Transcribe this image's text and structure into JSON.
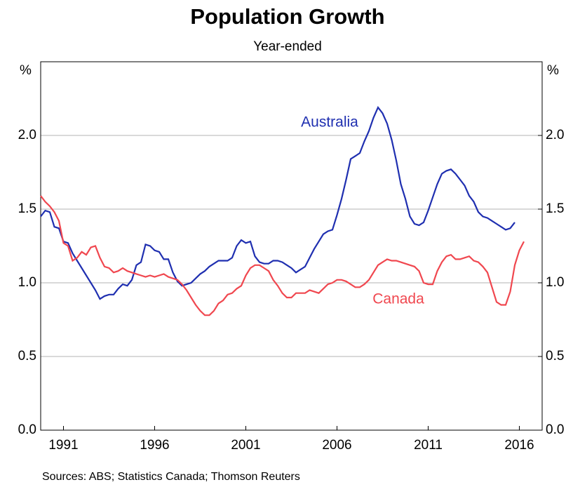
{
  "chart_data": {
    "type": "line",
    "title": "Population Growth",
    "subtitle": "Year-ended",
    "y_label": "%",
    "y2_label": "%",
    "source": "Sources:   ABS; Statistics Canada; Thomson Reuters",
    "xlim": [
      1990.25,
      2017.75
    ],
    "xticks": [
      {
        "value": 1991.5,
        "label": "1991"
      },
      {
        "value": 1996.5,
        "label": "1996"
      },
      {
        "value": 2001.5,
        "label": "2001"
      },
      {
        "value": 2006.5,
        "label": "2006"
      },
      {
        "value": 2011.5,
        "label": "2011"
      },
      {
        "value": 2016.5,
        "label": "2016"
      }
    ],
    "ylim": [
      0,
      2.5
    ],
    "yticks": [
      {
        "value": 0,
        "label": "0.0"
      },
      0.5,
      {
        "value": 1,
        "label": "1.0"
      },
      1.5,
      {
        "value": 2,
        "label": "2.0"
      }
    ],
    "y2lim": [
      0,
      2.5
    ],
    "y2ticks": [
      {
        "value": 0,
        "label": "0.0"
      },
      0.5,
      {
        "value": 1,
        "label": "1.0"
      },
      1.5,
      {
        "value": 2,
        "label": "2.0"
      }
    ],
    "grid": true,
    "x": [
      1990.25,
      1990.5,
      1990.75,
      1991,
      1991.25,
      1991.5,
      1991.75,
      1992,
      1992.25,
      1992.5,
      1992.75,
      1993,
      1993.25,
      1993.5,
      1993.75,
      1994,
      1994.25,
      1994.5,
      1994.75,
      1995,
      1995.25,
      1995.5,
      1995.75,
      1996,
      1996.25,
      1996.5,
      1996.75,
      1997,
      1997.25,
      1997.5,
      1997.75,
      1998,
      1998.25,
      1998.5,
      1998.75,
      1999,
      1999.25,
      1999.5,
      1999.75,
      2000,
      2000.25,
      2000.5,
      2000.75,
      2001,
      2001.25,
      2001.5,
      2001.75,
      2002,
      2002.25,
      2002.5,
      2002.75,
      2003,
      2003.25,
      2003.5,
      2003.75,
      2004,
      2004.25,
      2004.5,
      2004.75,
      2005,
      2005.25,
      2005.5,
      2005.75,
      2006,
      2006.25,
      2006.5,
      2006.75,
      2007,
      2007.25,
      2007.5,
      2007.75,
      2008,
      2008.25,
      2008.5,
      2008.75,
      2009,
      2009.25,
      2009.5,
      2009.75,
      2010,
      2010.25,
      2010.5,
      2010.75,
      2011,
      2011.25,
      2011.5,
      2011.75,
      2012,
      2012.25,
      2012.5,
      2012.75,
      2013,
      2013.25,
      2013.5,
      2013.75,
      2014,
      2014.25,
      2014.5,
      2014.75,
      2015,
      2015.25,
      2015.5,
      2015.75,
      2016,
      2016.25,
      2016.5,
      2016.75
    ],
    "series": [
      {
        "name": "Australia",
        "color": "#1f2fb0",
        "values": [
          1.45,
          1.49,
          1.48,
          1.38,
          1.37,
          1.28,
          1.27,
          1.2,
          1.15,
          1.1,
          1.05,
          1.0,
          0.95,
          0.89,
          0.91,
          0.92,
          0.92,
          0.96,
          0.99,
          0.98,
          1.02,
          1.12,
          1.14,
          1.26,
          1.25,
          1.22,
          1.21,
          1.16,
          1.16,
          1.07,
          1.01,
          0.98,
          0.99,
          1.0,
          1.03,
          1.06,
          1.08,
          1.11,
          1.13,
          1.15,
          1.15,
          1.15,
          1.17,
          1.25,
          1.29,
          1.27,
          1.28,
          1.18,
          1.14,
          1.13,
          1.13,
          1.15,
          1.15,
          1.14,
          1.12,
          1.1,
          1.07,
          1.09,
          1.11,
          1.17,
          1.23,
          1.28,
          1.33,
          1.35,
          1.36,
          1.46,
          1.57,
          1.7,
          1.84,
          1.86,
          1.88,
          1.96,
          2.03,
          2.12,
          2.19,
          2.15,
          2.08,
          1.97,
          1.83,
          1.67,
          1.57,
          1.45,
          1.4,
          1.39,
          1.41,
          1.49,
          1.58,
          1.67,
          1.74,
          1.76,
          1.77,
          1.74,
          1.7,
          1.66,
          1.59,
          1.55,
          1.48,
          1.45,
          1.44,
          1.42,
          1.4,
          1.38,
          1.36,
          1.37,
          1.41,
          null,
          null
        ]
      },
      {
        "name": "Canada",
        "color": "#f0474f",
        "values": [
          1.59,
          1.55,
          1.52,
          1.48,
          1.42,
          1.27,
          1.25,
          1.15,
          1.17,
          1.21,
          1.19,
          1.24,
          1.25,
          1.17,
          1.11,
          1.1,
          1.07,
          1.08,
          1.1,
          1.08,
          1.07,
          1.06,
          1.05,
          1.04,
          1.05,
          1.04,
          1.05,
          1.06,
          1.04,
          1.03,
          1.02,
          0.99,
          0.95,
          0.9,
          0.85,
          0.81,
          0.78,
          0.78,
          0.81,
          0.86,
          0.88,
          0.92,
          0.93,
          0.96,
          0.98,
          1.05,
          1.1,
          1.12,
          1.12,
          1.1,
          1.08,
          1.02,
          0.98,
          0.93,
          0.9,
          0.9,
          0.93,
          0.93,
          0.93,
          0.95,
          0.94,
          0.93,
          0.96,
          0.99,
          1.0,
          1.02,
          1.02,
          1.01,
          0.99,
          0.97,
          0.97,
          0.99,
          1.02,
          1.07,
          1.12,
          1.14,
          1.16,
          1.15,
          1.15,
          1.14,
          1.13,
          1.12,
          1.11,
          1.08,
          1.0,
          0.99,
          0.99,
          1.08,
          1.14,
          1.18,
          1.19,
          1.16,
          1.16,
          1.17,
          1.18,
          1.15,
          1.14,
          1.11,
          1.07,
          0.97,
          0.87,
          0.85,
          0.85,
          0.94,
          1.12,
          1.22,
          1.28
        ]
      }
    ]
  }
}
